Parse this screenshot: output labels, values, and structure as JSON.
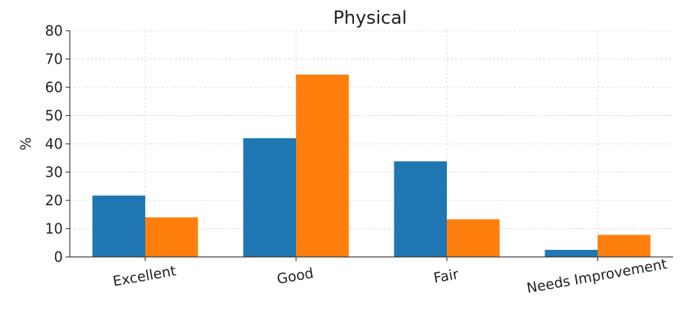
{
  "chart_data": {
    "type": "bar",
    "title": "Physical",
    "xlabel": "",
    "ylabel": "%",
    "ylim": [
      0,
      80
    ],
    "yticks": [
      0,
      10,
      20,
      30,
      40,
      50,
      60,
      70,
      80
    ],
    "grid": true,
    "legend": "none",
    "categories": [
      "Excellent",
      "Good",
      "Fair",
      "Needs Improvement"
    ],
    "series": [
      {
        "color": "#1f77b4",
        "values": [
          21.7,
          42.0,
          33.8,
          2.5
        ]
      },
      {
        "color": "#ff7f0e",
        "values": [
          14.0,
          64.5,
          13.3,
          7.8
        ]
      }
    ]
  }
}
